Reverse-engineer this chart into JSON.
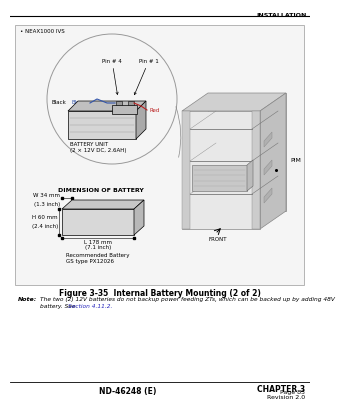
{
  "bg_color": "#ffffff",
  "header_text": "INSTALLATION",
  "figure_box_edge": "#888888",
  "figure_caption": "Figure 3-35  Internal Battery Mounting (2 of 2)",
  "note_label": "Note:",
  "note_text_1": "The two (2) 12V batteries do not backup power feeding ZTs, which can be backed up by adding 48V",
  "note_text_2": "battery. See ",
  "note_link": "Section 4.11.2.",
  "footer_left": "ND-46248 (E)",
  "footer_right_1": "CHAPTER 3",
  "footer_right_2": "Page 83",
  "footer_right_3": "Revision 2.0",
  "neax_label": "NEAX1000 IVS",
  "battery_unit_label_1": "BATTERY UNIT",
  "battery_unit_label_2": "(2 × 12V DC, 2.6AH)",
  "dimension_title": "DIMENSION OF BATTERY",
  "dim_w": "W 34 mm",
  "dim_w2": "(1.3 inch)",
  "dim_h": "H 60 mm",
  "dim_h2": "(2.4 inch)",
  "dim_l": "L 178 mm",
  "dim_l2": "(7.1 inch)",
  "rec_battery_1": "Recommended Battery",
  "rec_battery_2": "GS type PX12026",
  "pin4_label": "Pin # 4",
  "pin1_label": "Pin # 1",
  "blue_label": "Blue",
  "red_label": "Red",
  "black_label": "Black",
  "pim_label": "PIM",
  "front_label": "FRONT",
  "lc": "#000000",
  "gray1": "#cccccc",
  "gray2": "#aaaaaa",
  "gray3": "#888888",
  "gray4": "#dddddd",
  "blue_color": "#3355aa",
  "red_color": "#bb2222"
}
